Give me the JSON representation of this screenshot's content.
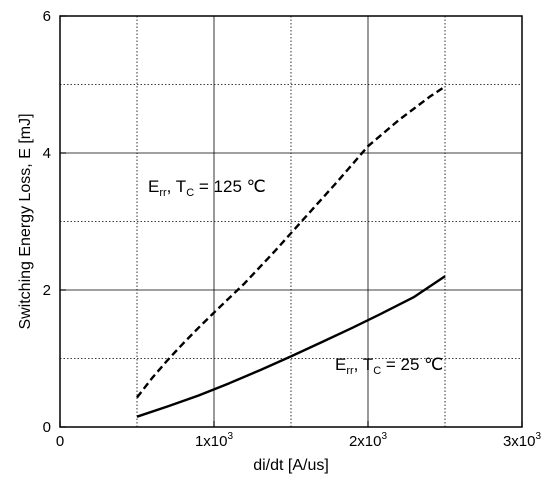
{
  "chart_data": {
    "type": "line",
    "xlabel": "di/dt [A/us]",
    "ylabel": "Switching Energy Loss, E [mJ]",
    "xlim": [
      0,
      3000
    ],
    "ylim": [
      0,
      6
    ],
    "x_ticks": [
      {
        "value": 0,
        "base": "0",
        "exp": ""
      },
      {
        "value": 1000,
        "base": "1x10",
        "exp": "3"
      },
      {
        "value": 2000,
        "base": "2x10",
        "exp": "3"
      },
      {
        "value": 3000,
        "base": "3x10",
        "exp": "3"
      }
    ],
    "y_ticks": [
      {
        "value": 0,
        "label": "0"
      },
      {
        "value": 2,
        "label": "2"
      },
      {
        "value": 4,
        "label": "4"
      },
      {
        "value": 6,
        "label": "6"
      }
    ],
    "grid": {
      "major_x": [
        1000,
        2000
      ],
      "major_y": [
        2,
        4
      ],
      "minor_x": [
        500,
        1500,
        2500
      ],
      "minor_y": [
        1,
        3,
        5
      ]
    },
    "series": [
      {
        "name_main": "E",
        "name_sub": "rr",
        "name_rest": ", T",
        "temp_sub": "C",
        "temp_value": " = 125 ℃",
        "style": "dashed",
        "x": [
          500,
          600,
          700,
          800,
          900,
          1000,
          1200,
          1400,
          1600,
          1800,
          2000,
          2200,
          2400,
          2500
        ],
        "y": [
          0.43,
          0.72,
          0.98,
          1.22,
          1.45,
          1.67,
          2.1,
          2.58,
          3.08,
          3.58,
          4.1,
          4.48,
          4.82,
          4.97
        ]
      },
      {
        "name_main": "E",
        "name_sub": "rr",
        "name_rest": ", T",
        "temp_sub": "C",
        "temp_value": " = 25 ℃",
        "style": "solid",
        "x": [
          500,
          700,
          900,
          1100,
          1300,
          1500,
          1700,
          1900,
          2100,
          2300,
          2500
        ],
        "y": [
          0.15,
          0.3,
          0.46,
          0.64,
          0.83,
          1.03,
          1.24,
          1.45,
          1.67,
          1.9,
          2.2
        ]
      }
    ]
  }
}
